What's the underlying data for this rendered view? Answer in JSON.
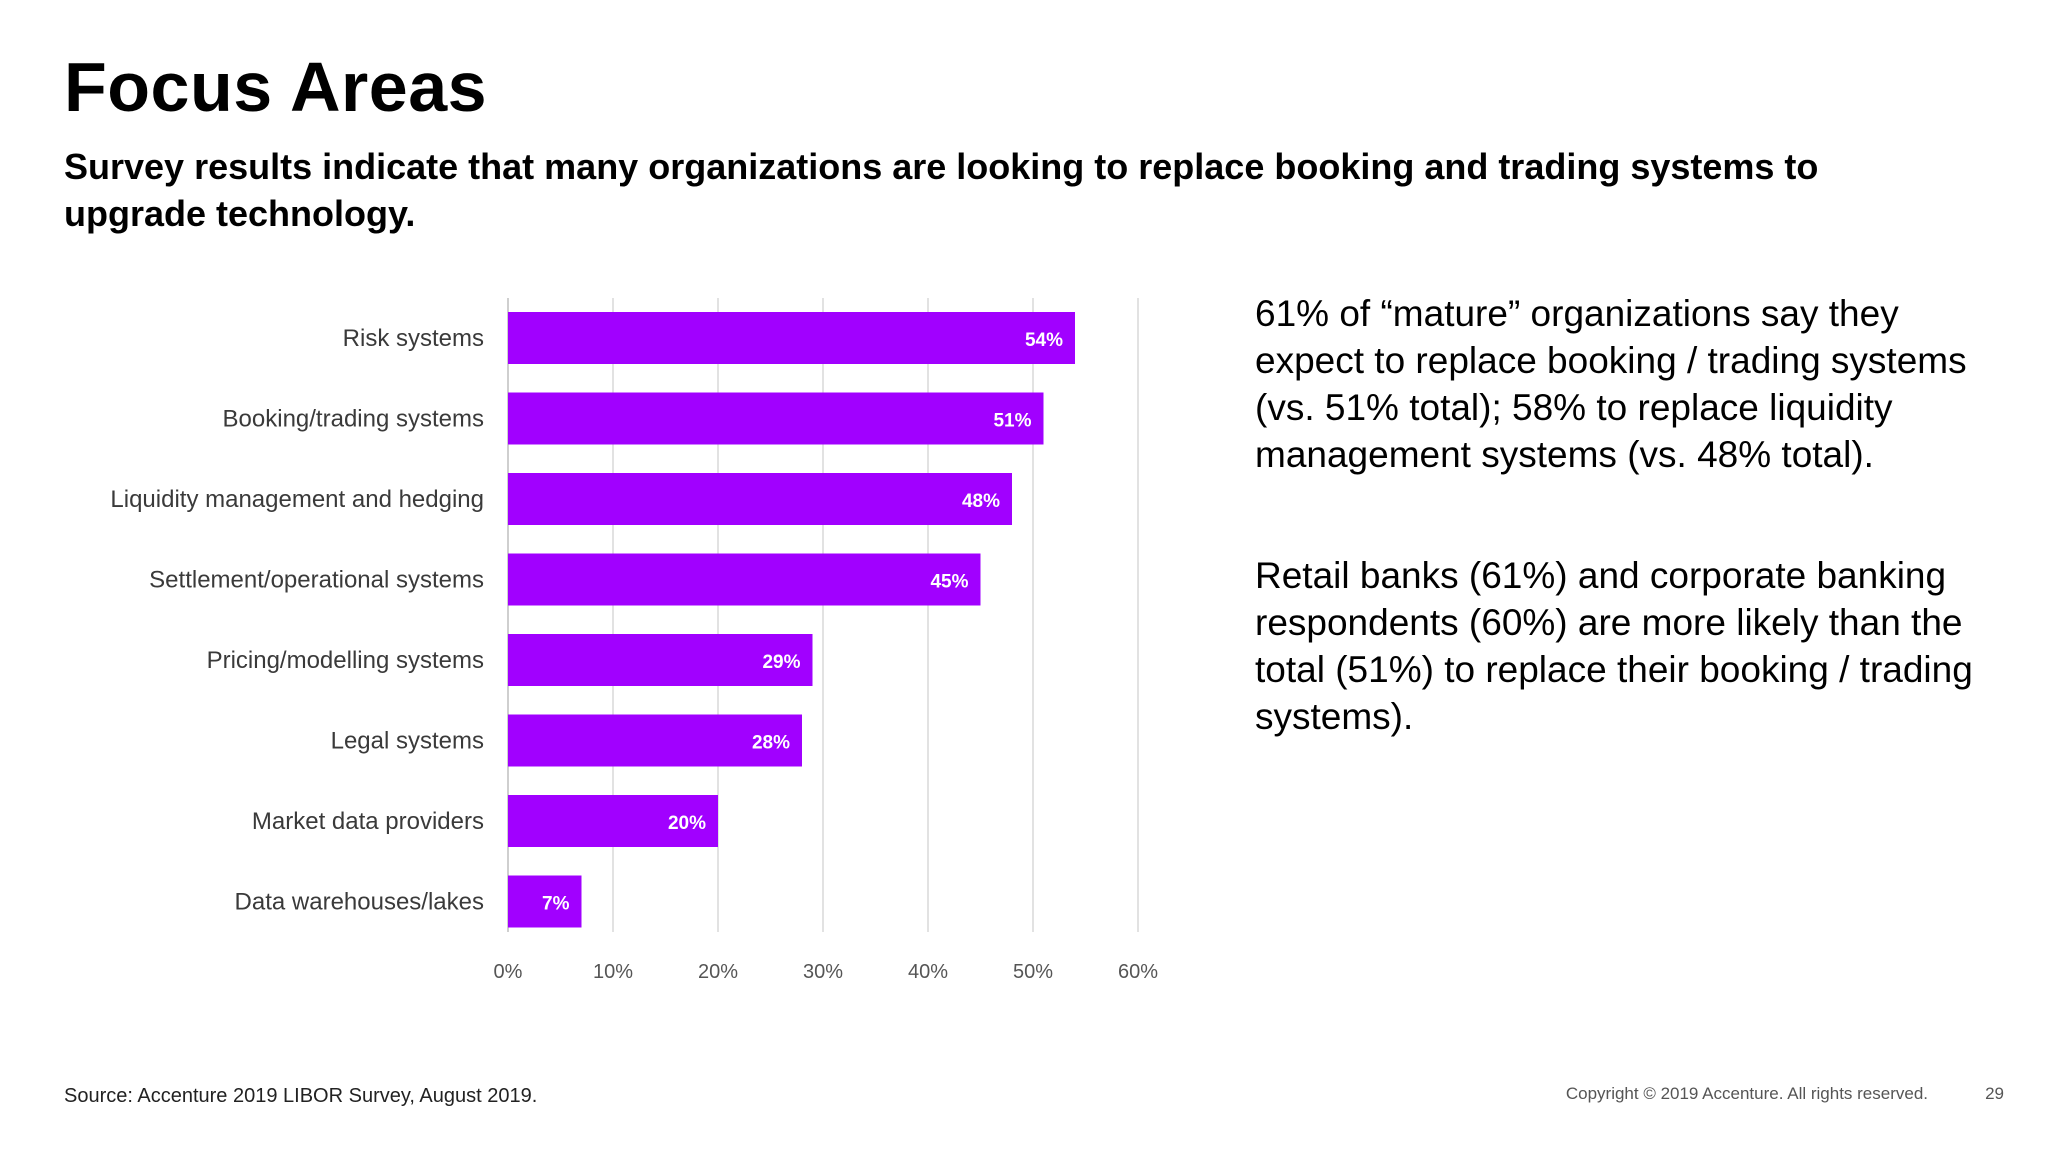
{
  "slide": {
    "title": "Focus Areas",
    "subtitle": "Survey results indicate that many organizations are looking to replace booking and trading systems to upgrade technology.",
    "notes": [
      "61% of “mature” organizations say they expect to replace booking / trading systems (vs. 51% total); 58% to replace liquidity management systems (vs. 48% total).",
      "Retail banks (61%) and corporate banking respondents (60%) are more likely than the total (51%) to replace their booking / trading systems)."
    ],
    "source": "Source: Accenture 2019 LIBOR Survey, August 2019.",
    "copyright": "Copyright © 2019 Accenture. All rights reserved.",
    "page_number": "29"
  },
  "chart_data": {
    "type": "bar",
    "orientation": "horizontal",
    "categories": [
      "Risk systems",
      "Booking/trading systems",
      "Liquidity management and hedging",
      "Settlement/operational systems",
      "Pricing/modelling systems",
      "Legal systems",
      "Market data providers",
      "Data warehouses/lakes"
    ],
    "values": [
      54,
      51,
      48,
      45,
      29,
      28,
      20,
      7
    ],
    "data_labels": [
      "54%",
      "51%",
      "48%",
      "45%",
      "29%",
      "28%",
      "20%",
      "7%"
    ],
    "xlim": [
      0,
      60
    ],
    "xticks": [
      "0%",
      "10%",
      "20%",
      "30%",
      "40%",
      "50%",
      "60%"
    ],
    "grid": true,
    "legend": "none",
    "bar_color": "#A100FF",
    "label_color": "#FFFFFF"
  }
}
